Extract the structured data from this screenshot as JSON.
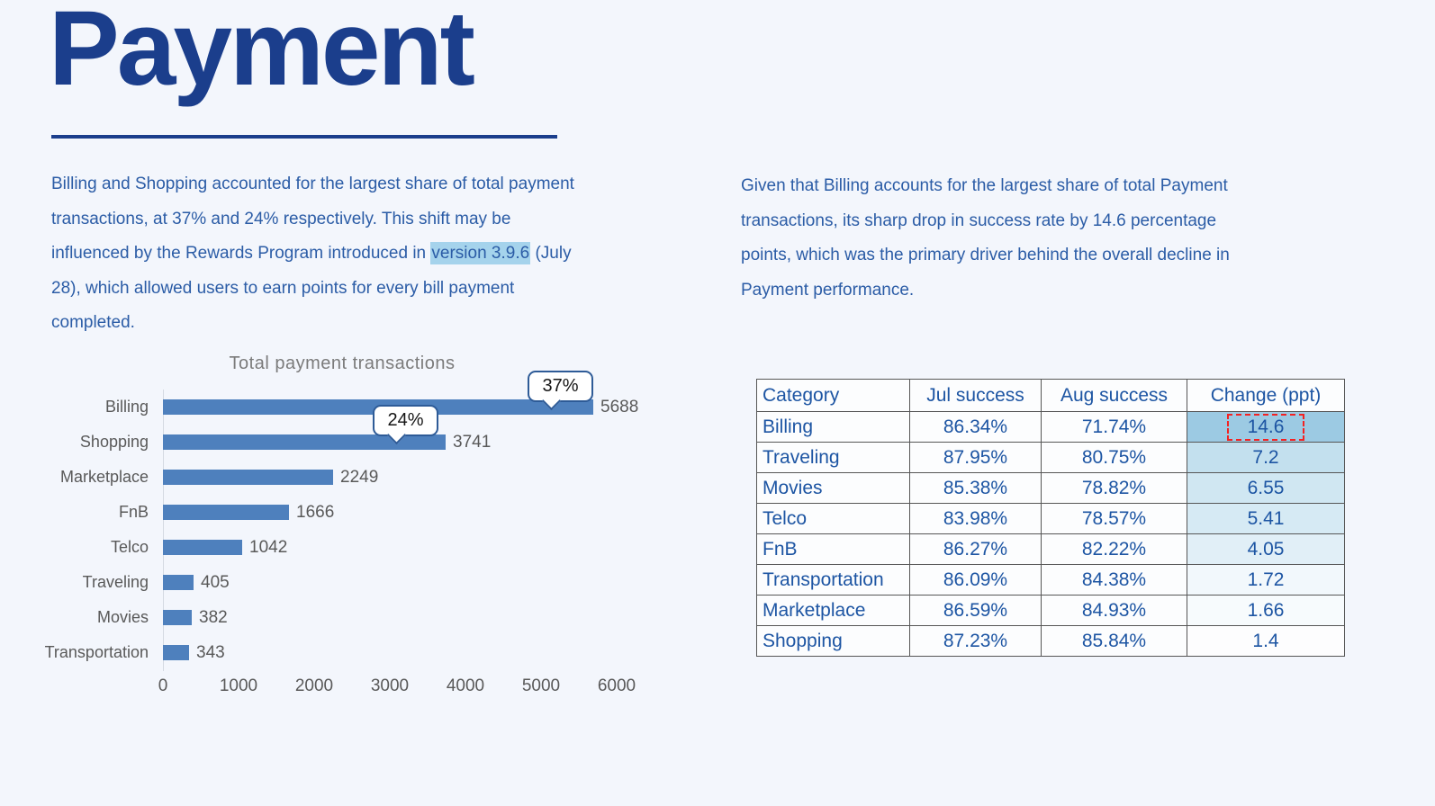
{
  "header": {
    "title": "Payment",
    "accent_color": "#1b3e8c"
  },
  "left_paragraph": {
    "before": "Billing and Shopping accounted for the largest share of total payment transactions, at 37% and 24% respectively. This shift may be influenced by the Rewards Program introduced in ",
    "highlight": "version 3.9.6",
    "after": " (July 28), which allowed users to earn points for every bill payment completed.",
    "highlight_color": "#a5d3ec"
  },
  "right_paragraph": "Given that Billing accounts for the largest share of total Payment transactions, its sharp drop in success rate by 14.6 percentage points, which was the primary driver behind the overall decline in Payment performance.",
  "chart_data": {
    "type": "bar",
    "orientation": "horizontal",
    "title": "Total payment transactions",
    "xlabel": "",
    "ylabel": "",
    "categories": [
      "Billing",
      "Shopping",
      "Marketplace",
      "FnB",
      "Telco",
      "Traveling",
      "Movies",
      "Transportation"
    ],
    "values": [
      5688,
      3741,
      2249,
      1666,
      1042,
      405,
      382,
      343
    ],
    "xlim": [
      0,
      6000
    ],
    "x_ticks": [
      0,
      1000,
      2000,
      3000,
      4000,
      5000,
      6000
    ],
    "grid": false,
    "legend": false,
    "bar_color": "#4e80bd",
    "annotations": [
      {
        "label": "37%",
        "category": "Billing"
      },
      {
        "label": "24%",
        "category": "Shopping"
      }
    ]
  },
  "table": {
    "headers": [
      "Category",
      "Jul success",
      "Aug success",
      "Change (ppt)"
    ],
    "rows": [
      {
        "category": "Billing",
        "jul": "86.34%",
        "aug": "71.74%",
        "change": "14.6",
        "change_bg": "#9ccae3",
        "boxed": true
      },
      {
        "category": "Traveling",
        "jul": "87.95%",
        "aug": "80.75%",
        "change": "7.2",
        "change_bg": "#c3e0ee",
        "boxed": false
      },
      {
        "category": "Movies",
        "jul": "85.38%",
        "aug": "78.82%",
        "change": "6.55",
        "change_bg": "#d0e7f2",
        "boxed": false
      },
      {
        "category": "Telco",
        "jul": "83.98%",
        "aug": "78.57%",
        "change": "5.41",
        "change_bg": "#d6eaf4",
        "boxed": false
      },
      {
        "category": "FnB",
        "jul": "86.27%",
        "aug": "82.22%",
        "change": "4.05",
        "change_bg": "#e1eff7",
        "boxed": false
      },
      {
        "category": "Transportation",
        "jul": "86.09%",
        "aug": "84.38%",
        "change": "1.72",
        "change_bg": "#f2f8fc",
        "boxed": false
      },
      {
        "category": "Marketplace",
        "jul": "86.59%",
        "aug": "84.93%",
        "change": "1.66",
        "change_bg": "#f7fbfd",
        "boxed": false
      },
      {
        "category": "Shopping",
        "jul": "87.23%",
        "aug": "85.84%",
        "change": "1.4",
        "change_bg": "#fdfdfe",
        "boxed": false
      }
    ],
    "red_box_color": "#f32222"
  }
}
